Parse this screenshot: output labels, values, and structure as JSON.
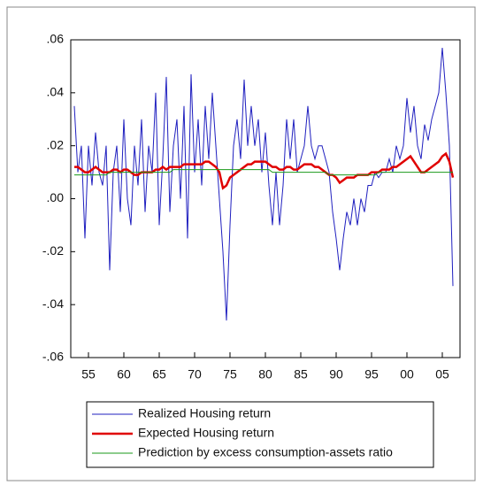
{
  "chart_data": {
    "type": "line",
    "x": [
      1953,
      1953.5,
      1954,
      1954.5,
      1955,
      1955.5,
      1956,
      1956.5,
      1957,
      1957.5,
      1958,
      1958.5,
      1959,
      1959.5,
      1960,
      1960.5,
      1961,
      1961.5,
      1962,
      1962.5,
      1963,
      1963.5,
      1964,
      1964.5,
      1965,
      1965.5,
      1966,
      1966.5,
      1967,
      1967.5,
      1968,
      1968.5,
      1969,
      1969.5,
      1970,
      1970.5,
      1971,
      1971.5,
      1972,
      1972.5,
      1973,
      1973.5,
      1974,
      1974.5,
      1975,
      1975.5,
      1976,
      1976.5,
      1977,
      1977.5,
      1978,
      1978.5,
      1979,
      1979.5,
      1980,
      1980.5,
      1981,
      1981.5,
      1982,
      1982.5,
      1983,
      1983.5,
      1984,
      1984.5,
      1985,
      1985.5,
      1986,
      1986.5,
      1987,
      1987.5,
      1988,
      1988.5,
      1989,
      1989.5,
      1990,
      1990.5,
      1991,
      1991.5,
      1992,
      1992.5,
      1993,
      1993.5,
      1994,
      1994.5,
      1995,
      1995.5,
      1996,
      1996.5,
      1997,
      1997.5,
      1998,
      1998.5,
      1999,
      1999.5,
      2000,
      2000.5,
      2001,
      2001.5,
      2002,
      2002.5,
      2003,
      2003.5,
      2004,
      2004.5,
      2005,
      2005.5,
      2006,
      2006.5
    ],
    "series": [
      {
        "name": "Realized Housing return",
        "color": "#1f1fbf",
        "width": 1,
        "values": [
          0.035,
          0.01,
          0.02,
          -0.015,
          0.02,
          0.005,
          0.025,
          0.01,
          0.005,
          0.02,
          -0.027,
          0.01,
          0.02,
          -0.005,
          0.03,
          0.0,
          -0.01,
          0.02,
          0.005,
          0.03,
          -0.005,
          0.02,
          0.01,
          0.04,
          -0.01,
          0.015,
          0.046,
          -0.005,
          0.02,
          0.03,
          0.0,
          0.035,
          -0.015,
          0.047,
          0.01,
          0.03,
          0.005,
          0.035,
          0.015,
          0.04,
          0.02,
          0.0,
          -0.02,
          -0.046,
          -0.01,
          0.02,
          0.03,
          0.015,
          0.045,
          0.02,
          0.035,
          0.02,
          0.03,
          0.01,
          0.025,
          0.005,
          -0.01,
          0.01,
          -0.01,
          0.005,
          0.03,
          0.015,
          0.03,
          0.01,
          0.015,
          0.02,
          0.035,
          0.02,
          0.015,
          0.02,
          0.02,
          0.015,
          0.01,
          -0.005,
          -0.015,
          -0.027,
          -0.015,
          -0.005,
          -0.01,
          0.0,
          -0.01,
          0.0,
          -0.005,
          0.005,
          0.005,
          0.01,
          0.008,
          0.01,
          0.01,
          0.015,
          0.01,
          0.02,
          0.015,
          0.02,
          0.038,
          0.025,
          0.035,
          0.02,
          0.015,
          0.028,
          0.022,
          0.03,
          0.035,
          0.04,
          0.057,
          0.04,
          0.02,
          -0.033
        ]
      },
      {
        "name": "Expected Housing return",
        "color": "#e00000",
        "width": 2.5,
        "values": [
          0.012,
          0.012,
          0.011,
          0.01,
          0.01,
          0.011,
          0.012,
          0.011,
          0.01,
          0.01,
          0.01,
          0.011,
          0.011,
          0.01,
          0.011,
          0.011,
          0.01,
          0.009,
          0.009,
          0.01,
          0.01,
          0.01,
          0.01,
          0.011,
          0.011,
          0.012,
          0.011,
          0.012,
          0.012,
          0.012,
          0.012,
          0.013,
          0.013,
          0.013,
          0.013,
          0.013,
          0.013,
          0.014,
          0.014,
          0.013,
          0.012,
          0.01,
          0.004,
          0.005,
          0.008,
          0.009,
          0.01,
          0.011,
          0.012,
          0.013,
          0.013,
          0.014,
          0.014,
          0.014,
          0.014,
          0.013,
          0.012,
          0.012,
          0.011,
          0.011,
          0.012,
          0.012,
          0.011,
          0.011,
          0.012,
          0.013,
          0.013,
          0.013,
          0.012,
          0.012,
          0.011,
          0.01,
          0.009,
          0.009,
          0.008,
          0.006,
          0.007,
          0.008,
          0.008,
          0.008,
          0.009,
          0.009,
          0.009,
          0.009,
          0.01,
          0.01,
          0.01,
          0.011,
          0.011,
          0.011,
          0.012,
          0.012,
          0.013,
          0.014,
          0.015,
          0.016,
          0.014,
          0.012,
          0.01,
          0.01,
          0.011,
          0.012,
          0.013,
          0.014,
          0.016,
          0.017,
          0.014,
          0.008
        ]
      },
      {
        "name": "Prediction by excess consumption-assets ratio",
        "color": "#1a9a1a",
        "width": 1,
        "values": [
          0.009,
          0.009,
          0.009,
          0.009,
          0.009,
          0.009,
          0.009,
          0.009,
          0.009,
          0.009,
          0.01,
          0.01,
          0.01,
          0.01,
          0.01,
          0.01,
          0.01,
          0.01,
          0.01,
          0.01,
          0.01,
          0.01,
          0.01,
          0.01,
          0.01,
          0.01,
          0.01,
          0.01,
          0.011,
          0.011,
          0.011,
          0.011,
          0.011,
          0.011,
          0.011,
          0.011,
          0.011,
          0.011,
          0.011,
          0.011,
          0.011,
          0.011,
          0.011,
          0.011,
          0.011,
          0.011,
          0.011,
          0.011,
          0.011,
          0.011,
          0.011,
          0.011,
          0.011,
          0.011,
          0.011,
          0.011,
          0.01,
          0.01,
          0.01,
          0.01,
          0.01,
          0.01,
          0.01,
          0.01,
          0.01,
          0.01,
          0.01,
          0.01,
          0.01,
          0.01,
          0.01,
          0.01,
          0.009,
          0.009,
          0.009,
          0.009,
          0.009,
          0.009,
          0.009,
          0.009,
          0.009,
          0.009,
          0.009,
          0.009,
          0.009,
          0.009,
          0.01,
          0.01,
          0.01,
          0.01,
          0.01,
          0.01,
          0.01,
          0.01,
          0.01,
          0.01,
          0.01,
          0.01,
          0.01,
          0.01,
          0.01,
          0.01,
          0.01,
          0.01,
          0.01,
          0.01,
          0.01,
          0.01
        ]
      }
    ],
    "xlim": [
      1952.5,
      2007.5
    ],
    "ylim": [
      -0.06,
      0.06
    ],
    "xticks": [
      {
        "value": 1955,
        "label": "55"
      },
      {
        "value": 1960,
        "label": "60"
      },
      {
        "value": 1965,
        "label": "65"
      },
      {
        "value": 1970,
        "label": "70"
      },
      {
        "value": 1975,
        "label": "75"
      },
      {
        "value": 1980,
        "label": "80"
      },
      {
        "value": 1985,
        "label": "85"
      },
      {
        "value": 1990,
        "label": "90"
      },
      {
        "value": 1995,
        "label": "95"
      },
      {
        "value": 2000,
        "label": "00"
      },
      {
        "value": 2005,
        "label": "05"
      }
    ],
    "yticks": [
      {
        "value": -0.06,
        "label": "-.06"
      },
      {
        "value": -0.04,
        "label": "-.04"
      },
      {
        "value": -0.02,
        "label": "-.02"
      },
      {
        "value": 0,
        "label": ".00"
      },
      {
        "value": 0.02,
        "label": ".02"
      },
      {
        "value": 0.04,
        "label": ".04"
      },
      {
        "value": 0.06,
        "label": ".06"
      }
    ],
    "legend": "bottom"
  }
}
